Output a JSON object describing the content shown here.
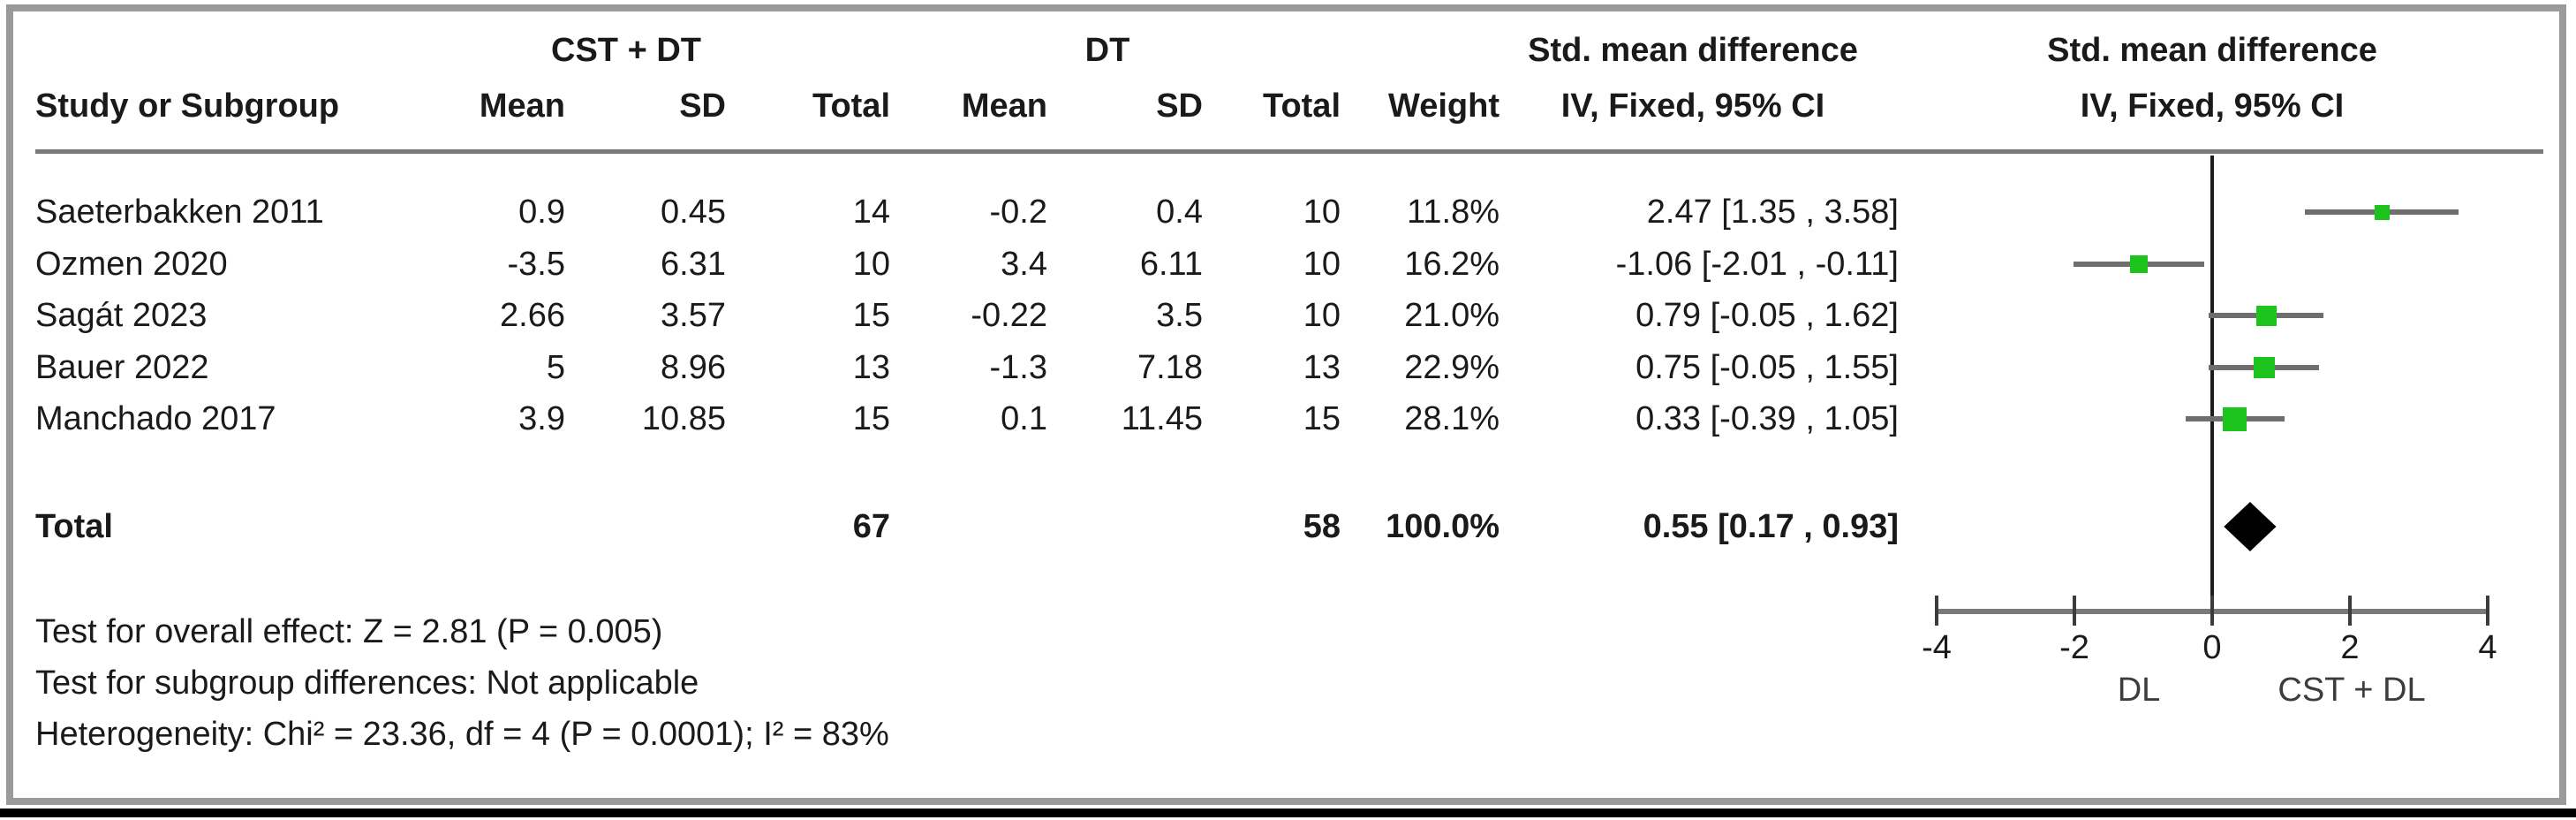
{
  "header": {
    "group1_label": "CST + DT",
    "group2_label": "DT",
    "smd_header": "Std. mean difference",
    "ci_subheader": "IV, Fixed, 95% CI",
    "columns": {
      "study": "Study or Subgroup",
      "mean": "Mean",
      "sd": "SD",
      "total": "Total",
      "weight": "Weight"
    }
  },
  "colors": {
    "marker_green": "#1ec41e",
    "whisker_gray": "#6e6e6e",
    "rule_gray": "#7a7a7a",
    "frame_gray": "#9a9a9a",
    "diamond_black": "#000000"
  },
  "chart_data": {
    "type": "forest",
    "title": "",
    "effect_measure": "Std. mean difference (IV, Fixed, 95% CI)",
    "studies": [
      {
        "label": "Saeterbakken 2011",
        "mean1": "0.9",
        "sd1": "0.45",
        "total1": "14",
        "mean2": "-0.2",
        "sd2": "0.4",
        "total2": "10",
        "weight": "11.8%",
        "weight_pct": 11.8,
        "ci_text": "2.47 [1.35 , 3.58]",
        "smd": 2.47,
        "ci_low": 1.35,
        "ci_high": 3.58
      },
      {
        "label": "Ozmen 2020",
        "mean1": "-3.5",
        "sd1": "6.31",
        "total1": "10",
        "mean2": "3.4",
        "sd2": "6.11",
        "total2": "10",
        "weight": "16.2%",
        "weight_pct": 16.2,
        "ci_text": "-1.06 [-2.01 , -0.11]",
        "smd": -1.06,
        "ci_low": -2.01,
        "ci_high": -0.11
      },
      {
        "label": "Sagát 2023",
        "mean1": "2.66",
        "sd1": "3.57",
        "total1": "15",
        "mean2": "-0.22",
        "sd2": "3.5",
        "total2": "10",
        "weight": "21.0%",
        "weight_pct": 21.0,
        "ci_text": "0.79 [-0.05 , 1.62]",
        "smd": 0.79,
        "ci_low": -0.05,
        "ci_high": 1.62
      },
      {
        "label": "Bauer 2022",
        "mean1": "5",
        "sd1": "8.96",
        "total1": "13",
        "mean2": "-1.3",
        "sd2": "7.18",
        "total2": "13",
        "weight": "22.9%",
        "weight_pct": 22.9,
        "ci_text": "0.75 [-0.05 , 1.55]",
        "smd": 0.75,
        "ci_low": -0.05,
        "ci_high": 1.55
      },
      {
        "label": "Manchado 2017",
        "mean1": "3.9",
        "sd1": "10.85",
        "total1": "15",
        "mean2": "0.1",
        "sd2": "11.45",
        "total2": "15",
        "weight": "28.1%",
        "weight_pct": 28.1,
        "ci_text": "0.33 [-0.39 , 1.05]",
        "smd": 0.33,
        "ci_low": -0.39,
        "ci_high": 1.05
      }
    ],
    "total": {
      "label": "Total",
      "total1": "67",
      "total2": "58",
      "weight": "100.0%",
      "ci_text": "0.55 [0.17 , 0.93]",
      "smd": 0.55,
      "ci_low": 0.17,
      "ci_high": 0.93
    },
    "axis": {
      "xlim": [
        -4,
        4
      ],
      "ticks": [
        -4,
        -2,
        0,
        2,
        4
      ],
      "tick_labels": [
        "-4",
        "-2",
        "0",
        "2",
        "4"
      ],
      "left_label": "DL",
      "right_label": "CST + DL",
      "grid": false
    },
    "footnotes": [
      "Test for overall effect: Z = 2.81 (P = 0.005)",
      "Test for subgroup differences: Not applicable",
      "Heterogeneity: Chi² = 23.36, df = 4 (P = 0.0001); I² = 83%"
    ]
  }
}
